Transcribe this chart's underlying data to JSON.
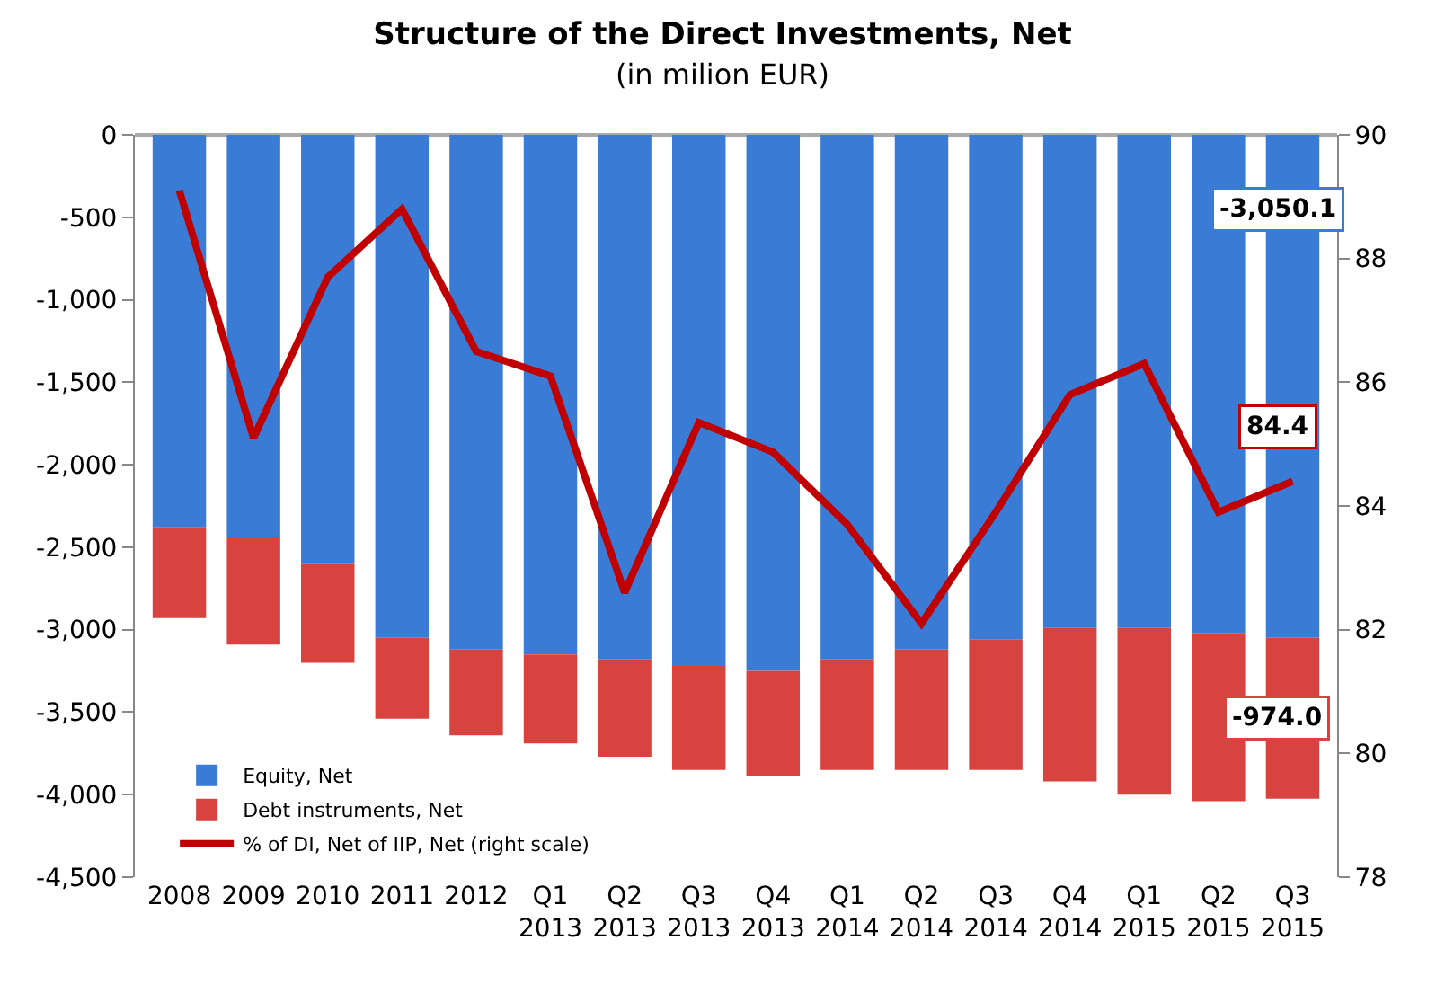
{
  "chart_data": {
    "type": "bar",
    "title": "Structure of the Direct Investments, Net",
    "subtitle": "(in milion EUR)",
    "categories": [
      "2008",
      "2009",
      "2010",
      "2011",
      "2012",
      "Q1 2013",
      "Q2 2013",
      "Q3 2013",
      "Q4 2013",
      "Q1 2014",
      "Q2 2014",
      "Q3 2014",
      "Q4 2014",
      "Q1 2015",
      "Q2 2015",
      "Q3 2015"
    ],
    "stacked": true,
    "series": [
      {
        "name": "Equity, Net",
        "color": "#3a7bd5",
        "values": [
          -2380,
          -2440,
          -2600,
          -3050,
          -3120,
          -3150,
          -3180,
          -3220,
          -3250,
          -3180,
          -3120,
          -3060,
          -2990,
          -2990,
          -3020,
          -3050.1
        ],
        "value_labels": [
          null,
          null,
          null,
          null,
          null,
          null,
          null,
          null,
          null,
          null,
          null,
          null,
          null,
          null,
          null,
          "-3,050.1"
        ]
      },
      {
        "name": "Debt instruments, Net",
        "color": "#d8433f",
        "values": [
          -550,
          -650,
          -600,
          -490,
          -520,
          -540,
          -590,
          -630,
          -640,
          -670,
          -730,
          -790,
          -930,
          -1010,
          -1020,
          -974.0
        ],
        "value_labels": [
          null,
          null,
          null,
          null,
          null,
          null,
          null,
          null,
          null,
          null,
          null,
          null,
          null,
          null,
          null,
          "-974.0"
        ]
      },
      {
        "name": "% of DI, Net of IIP, Net (right scale)",
        "type": "line",
        "axis": "y2",
        "color": "#c00000",
        "values": [
          89.1,
          85.1,
          87.7,
          88.8,
          86.5,
          86.1,
          82.6,
          85.35,
          84.87,
          83.7,
          82.1,
          83.9,
          85.8,
          86.3,
          83.9,
          84.4
        ],
        "value_labels": [
          null,
          null,
          null,
          null,
          null,
          null,
          null,
          null,
          null,
          null,
          null,
          null,
          null,
          null,
          null,
          "84.4"
        ]
      }
    ],
    "ylim": [
      -4500,
      0
    ],
    "yticks": [
      0,
      -500,
      {
        "value": -1000,
        "label": "-1,000"
      },
      {
        "value": -1500,
        "label": "-1,500"
      },
      {
        "value": -2000,
        "label": "-2,000"
      },
      {
        "value": -2500,
        "label": "-2,500"
      },
      {
        "value": -3000,
        "label": "-3,000"
      },
      {
        "value": -3500,
        "label": "-3,500"
      },
      {
        "value": -4000,
        "label": "-4,000"
      },
      {
        "value": -4500,
        "label": "-4,500"
      }
    ],
    "y2lim": [
      78,
      90
    ],
    "y2ticks": [
      78,
      80,
      82,
      84,
      86,
      88,
      90
    ],
    "legend": "bottom left",
    "marker": "none",
    "line_style": "solid"
  }
}
